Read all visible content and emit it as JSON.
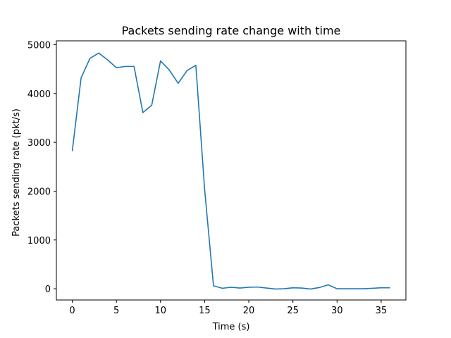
{
  "chart_data": {
    "type": "line",
    "title": "Packets sending rate change with time",
    "xlabel": "Time (s)",
    "ylabel": "Packets sending rate (pkt/s)",
    "xlim": [
      -1.8,
      37.8
    ],
    "ylim": [
      -230,
      5080
    ],
    "xticks": [
      0,
      5,
      10,
      15,
      20,
      25,
      30,
      35
    ],
    "yticks": [
      0,
      1000,
      2000,
      3000,
      4000,
      5000
    ],
    "grid": false,
    "legend": "none",
    "series": [
      {
        "color": "#1f77b4",
        "x": [
          0,
          1,
          2,
          3,
          4,
          5,
          6,
          7,
          8,
          9,
          10,
          11,
          12,
          13,
          14,
          15,
          16,
          17,
          18,
          19,
          20,
          21,
          22,
          23,
          24,
          25,
          26,
          27,
          28,
          29,
          30,
          31,
          32,
          33,
          34,
          35,
          36
        ],
        "y": [
          2820,
          4320,
          4720,
          4830,
          4690,
          4530,
          4555,
          4555,
          3610,
          3760,
          4670,
          4480,
          4210,
          4470,
          4580,
          2030,
          60,
          10,
          30,
          15,
          30,
          35,
          15,
          -5,
          0,
          20,
          15,
          -5,
          25,
          80,
          0,
          0,
          0,
          0,
          10,
          20,
          20
        ]
      }
    ]
  }
}
